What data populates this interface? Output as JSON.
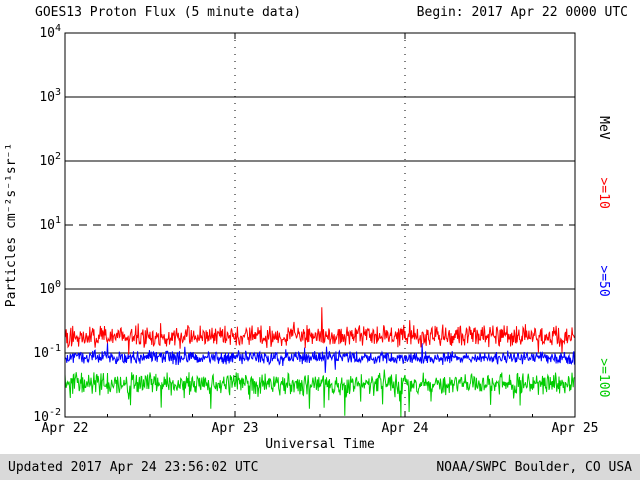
{
  "chart_data": {
    "type": "line",
    "title": "GOES13 Proton Flux (5 minute data)",
    "begin_label": "Begin: 2017 Apr 22 0000 UTC",
    "xlabel": "Universal Time",
    "ylabel": "Particles cm⁻²s⁻¹sr⁻¹",
    "x_tick_labels": [
      "Apr 22",
      "Apr 23",
      "Apr 24",
      "Apr 25"
    ],
    "x_span_days": 3,
    "sample_interval_minutes": 5,
    "points_per_series": 864,
    "data_end_fraction": 0.9988,
    "y_scale": "log10",
    "y_log_min": -2,
    "y_log_max": 4,
    "y_tick_exponents": [
      4,
      3,
      2,
      1,
      0,
      -1,
      -2
    ],
    "grid": {
      "solid_h_exponents": [
        3,
        2,
        0,
        -1
      ],
      "dashed_h_exponents": [
        1
      ],
      "dotted_v_days": [
        1,
        2
      ]
    },
    "right_axis_units": "MeV",
    "legend_position": "right",
    "axis_color": "#000000",
    "series": [
      {
        "name": "Proton flux >=10 MeV",
        "label": ">=10",
        "color": "#FF0000",
        "approx_flux_mean": 0.18,
        "approx_log10_mean": -0.74,
        "approx_log10_jitter": 0.2,
        "spike_prob": 0.05,
        "spike_log10": 0.25,
        "spike_bias": 0.35,
        "seed": 101
      },
      {
        "name": "Proton flux >=50 MeV",
        "label": ">=50",
        "color": "#0000FF",
        "approx_flux_mean": 0.085,
        "approx_log10_mean": -1.07,
        "approx_log10_jitter": 0.12,
        "spike_prob": 0.03,
        "spike_log10": 0.2,
        "spike_bias": 0.4,
        "seed": 202
      },
      {
        "name": "Proton flux >=100 MeV",
        "label": ">=100",
        "color": "#00CC00",
        "approx_flux_mean": 0.033,
        "approx_log10_mean": -1.48,
        "approx_log10_jitter": 0.2,
        "spike_prob": 0.06,
        "spike_log10": 0.3,
        "spike_bias": 0.75,
        "seed": 303
      }
    ]
  },
  "footer": {
    "updated": "Updated 2017 Apr 24 23:56:02 UTC",
    "credit": "NOAA/SWPC Boulder, CO USA",
    "bar_color": "#d9d9d9"
  }
}
